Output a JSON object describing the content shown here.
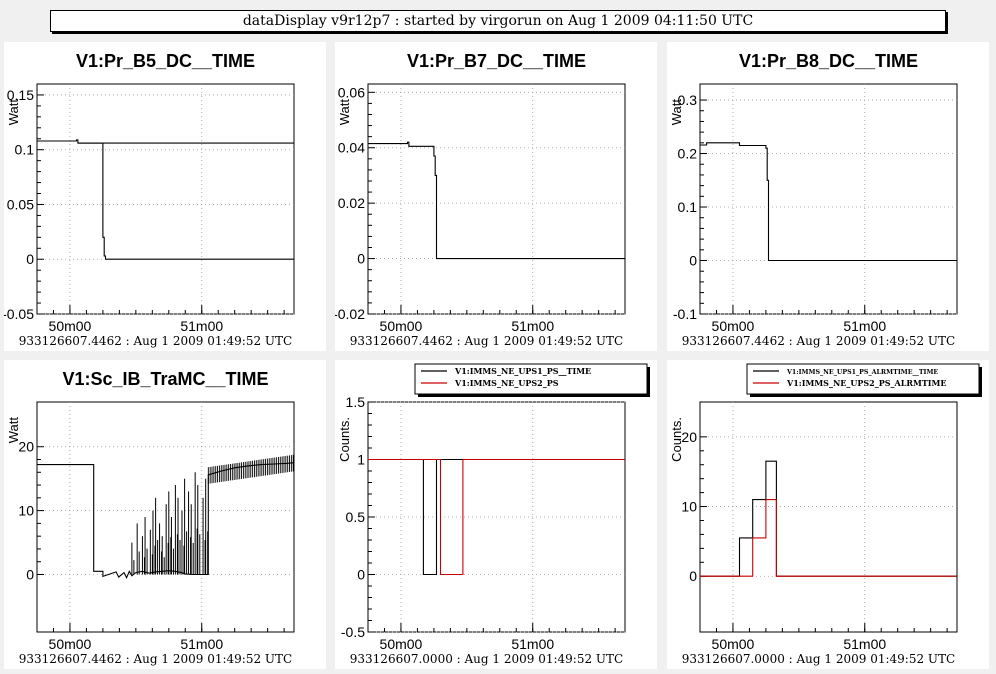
{
  "header": {
    "title": "dataDisplay v9r12p7 : started by virgorun on Aug  1 2009 04:11:50 UTC"
  },
  "chart_data": [
    {
      "type": "line",
      "title": "V1:Pr_B5_DC__TIME",
      "ylabel": "Watt",
      "footer": "933126607.4462 : Aug  1 2009 01:49:52 UTC",
      "xlim": [
        0,
        1.95
      ],
      "ylim": [
        -0.05,
        0.16
      ],
      "xticks": [
        {
          "v": 0.25,
          "label": "50m00"
        },
        {
          "v": 1.25,
          "label": "51m00"
        }
      ],
      "yticks": [
        {
          "v": -0.05,
          "label": "-0.05"
        },
        {
          "v": 0,
          "label": "0"
        },
        {
          "v": 0.05,
          "label": "0.05"
        },
        {
          "v": 0.1,
          "label": "0.1"
        },
        {
          "v": 0.15,
          "label": "0.15"
        }
      ],
      "grid": true,
      "series": [
        {
          "color": "#000000",
          "x": [
            0,
            0.3,
            0.3,
            0.31,
            0.31,
            2.5
          ],
          "y": [
            0.108,
            0.108,
            0.109,
            0.109,
            0.106,
            0.106
          ],
          "x2": [
            0.31,
            0.5,
            0.5,
            0.5,
            0.5,
            0.51,
            0.51,
            0.52,
            0.52,
            1.95
          ],
          "y2": [
            0.106,
            0.106,
            0.105,
            0.105,
            0.02,
            0.02,
            0.003,
            0.003,
            0,
            0
          ]
        }
      ]
    },
    {
      "type": "line",
      "title": "V1:Pr_B7_DC__TIME",
      "ylabel": "Watt",
      "footer": "933126607.4462 : Aug  1 2009 01:49:52 UTC",
      "xlim": [
        0,
        1.95
      ],
      "ylim": [
        -0.02,
        0.063
      ],
      "xticks": [
        {
          "v": 0.25,
          "label": "50m00"
        },
        {
          "v": 1.25,
          "label": "51m00"
        }
      ],
      "yticks": [
        {
          "v": -0.02,
          "label": "-0.02"
        },
        {
          "v": 0,
          "label": "0"
        },
        {
          "v": 0.02,
          "label": "0.02"
        },
        {
          "v": 0.04,
          "label": "0.04"
        },
        {
          "v": 0.06,
          "label": "0.06"
        }
      ],
      "grid": true,
      "series": [
        {
          "color": "#000000",
          "x": [
            0,
            0.3,
            0.3,
            0.31,
            0.31,
            0.5,
            0.5,
            0.51,
            0.51,
            0.52,
            0.52,
            1.95
          ],
          "y": [
            0.0415,
            0.0415,
            0.042,
            0.042,
            0.0405,
            0.0405,
            0.037,
            0.037,
            0.03,
            0.03,
            0,
            0
          ]
        }
      ]
    },
    {
      "type": "line",
      "title": "V1:Pr_B8_DC__TIME",
      "ylabel": "Watt",
      "footer": "933126607.4462 : Aug  1 2009 01:49:52 UTC",
      "xlim": [
        0,
        1.95
      ],
      "ylim": [
        -0.1,
        0.33
      ],
      "xticks": [
        {
          "v": 0.25,
          "label": "50m00"
        },
        {
          "v": 1.25,
          "label": "51m00"
        }
      ],
      "yticks": [
        {
          "v": -0.1,
          "label": "-0.1"
        },
        {
          "v": 0,
          "label": "0"
        },
        {
          "v": 0.1,
          "label": "0.1"
        },
        {
          "v": 0.2,
          "label": "0.2"
        },
        {
          "v": 0.3,
          "label": "0.3"
        }
      ],
      "grid": true,
      "series": [
        {
          "color": "#000000",
          "x": [
            0,
            0.05,
            0.05,
            0.3,
            0.3,
            0.5,
            0.5,
            0.51,
            0.51,
            0.52,
            0.52,
            1.95
          ],
          "y": [
            0.216,
            0.216,
            0.22,
            0.22,
            0.215,
            0.215,
            0.21,
            0.21,
            0.15,
            0.15,
            0,
            0
          ]
        }
      ]
    },
    {
      "type": "line",
      "title": "V1:Sc_IB_TraMC__TIME",
      "ylabel": "Watt",
      "footer": "933126607.4462 : Aug  1 2009 01:49:52 UTC",
      "xlim": [
        0,
        1.95
      ],
      "ylim": [
        -9,
        27
      ],
      "xticks": [
        {
          "v": 0.25,
          "label": "50m00"
        },
        {
          "v": 1.25,
          "label": "51m00"
        }
      ],
      "yticks": [
        {
          "v": 0,
          "label": "0"
        },
        {
          "v": 10,
          "label": "10"
        },
        {
          "v": 20,
          "label": "20"
        }
      ],
      "grid": true,
      "series": [
        {
          "color": "#000000",
          "x": [
            0,
            0.43,
            0.43,
            0.5,
            0.5,
            0.6,
            0.62,
            0.66,
            0.68,
            0.7,
            0.72,
            0.75,
            0.8,
            0.85,
            0.9,
            1.0,
            1.05,
            1.1,
            1.12,
            1.18,
            1.3,
            1.3,
            1.4,
            1.5,
            1.6,
            1.7,
            1.8,
            1.9,
            1.95
          ],
          "y": [
            17.2,
            17.2,
            0.5,
            0.5,
            -0.3,
            0.4,
            -0.4,
            0.3,
            -0.5,
            0.5,
            -0.2,
            0.3,
            0.5,
            0.2,
            0.4,
            0.6,
            0.5,
            0.3,
            0.1,
            0,
            0,
            15.6,
            16.2,
            16.7,
            17.0,
            17.2,
            17.3,
            17.4,
            17.5
          ]
        }
      ],
      "spikes": {
        "color": "#000000",
        "x": [
          0.72,
          0.76,
          0.8,
          0.82,
          0.86,
          0.88,
          0.9,
          0.93,
          0.95,
          0.98,
          1.0,
          1.02,
          1.05,
          1.07,
          1.1,
          1.12,
          1.15,
          1.17,
          1.2,
          1.22,
          1.26,
          1.28
        ],
        "y": [
          5,
          8,
          6,
          9,
          7,
          10,
          12,
          8,
          6,
          11,
          13,
          9,
          14,
          12,
          10,
          15,
          13,
          11,
          16,
          14,
          12,
          15
        ]
      }
    },
    {
      "type": "line",
      "title": "",
      "ylabel": "Counts.",
      "footer": "933126607.0000 : Aug  1 2009 01:49:52 UTC",
      "xlim": [
        0,
        1.95
      ],
      "ylim": [
        -0.5,
        1.5
      ],
      "xticks": [
        {
          "v": 0.25,
          "label": "50m00"
        },
        {
          "v": 1.25,
          "label": "51m00"
        }
      ],
      "yticks": [
        {
          "v": -0.5,
          "label": "-0.5"
        },
        {
          "v": 0,
          "label": "0"
        },
        {
          "v": 0.5,
          "label": "0.5"
        },
        {
          "v": 1,
          "label": "1"
        },
        {
          "v": 1.5,
          "label": "1.5"
        }
      ],
      "grid": true,
      "legend": {
        "placement": "top-right",
        "entries": [
          {
            "label": "V1:IMMS_NE_UPS1_PS__TIME",
            "color": "#000000"
          },
          {
            "label": "V1:IMMS_NE_UPS2_PS",
            "color": "#cc0000"
          }
        ]
      },
      "series": [
        {
          "color": "#000000",
          "x": [
            0,
            0.42,
            0.42,
            0.52,
            0.52,
            1.95
          ],
          "y": [
            1,
            1,
            0,
            0,
            1,
            1
          ]
        },
        {
          "color": "#cc0000",
          "x": [
            0,
            0.55,
            0.55,
            0.72,
            0.72,
            1.95
          ],
          "y": [
            1,
            1,
            0,
            0,
            1,
            1
          ]
        }
      ]
    },
    {
      "type": "line",
      "title": "",
      "ylabel": "Counts.",
      "footer": "933126607.0000 : Aug  1 2009 01:49:52 UTC",
      "xlim": [
        0,
        1.95
      ],
      "ylim": [
        -8,
        25
      ],
      "xticks": [
        {
          "v": 0.25,
          "label": "50m00"
        },
        {
          "v": 1.25,
          "label": "51m00"
        }
      ],
      "yticks": [
        {
          "v": 0,
          "label": "0"
        },
        {
          "v": 10,
          "label": "10"
        },
        {
          "v": 20,
          "label": "20"
        }
      ],
      "grid": true,
      "legend": {
        "placement": "top-right",
        "entries": [
          {
            "label": "V1:IMMS_NE_UPS1_PS_ALRMTIME__TIME",
            "color": "#000000"
          },
          {
            "label": "V1:IMMS_NE_UPS2_PS_ALRMTIME",
            "color": "#cc0000"
          }
        ]
      },
      "series": [
        {
          "color": "#000000",
          "x": [
            0,
            0.3,
            0.3,
            0.4,
            0.4,
            0.5,
            0.5,
            0.58,
            0.58,
            1.95
          ],
          "y": [
            0,
            0,
            5.5,
            5.5,
            11,
            11,
            16.5,
            16.5,
            0,
            0
          ]
        },
        {
          "color": "#cc0000",
          "x": [
            0,
            0.4,
            0.4,
            0.5,
            0.5,
            0.58,
            0.58,
            1.95
          ],
          "y": [
            0,
            0,
            5.5,
            5.5,
            11,
            11,
            0,
            0
          ]
        }
      ]
    }
  ]
}
